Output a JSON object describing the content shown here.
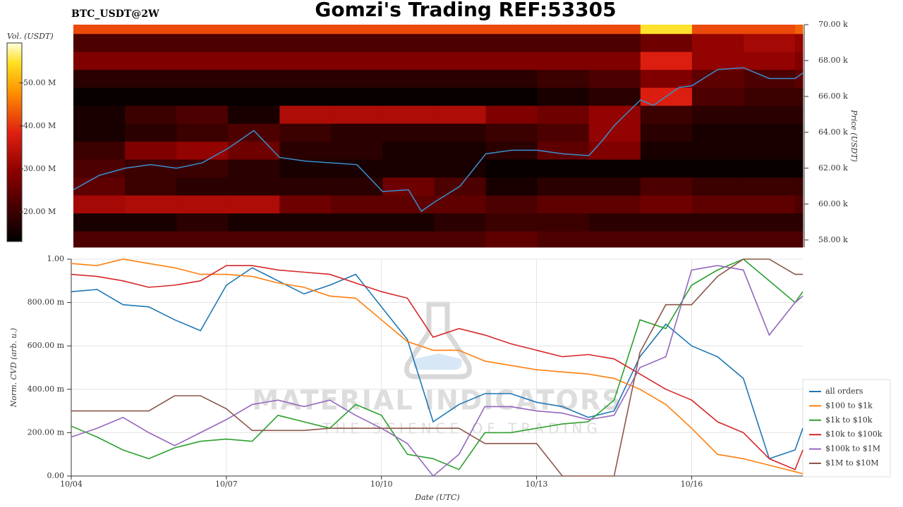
{
  "title": "Gomzi's Trading REF:53305",
  "watermark": {
    "title": "MATERIAL INDICATORS",
    "subtitle": "THE SCIENCE OF TRADING"
  },
  "chart_data": [
    {
      "type": "heatmap",
      "title": "BTC_USDT@2W",
      "ylabel": "Price (USDT)",
      "xlim": [
        0,
        14.15
      ],
      "ylim": [
        57.6,
        70
      ],
      "yticks": [
        {
          "value": 58,
          "label": "58.00 k"
        },
        {
          "value": 60,
          "label": "60.00 k"
        },
        {
          "value": 62,
          "label": "62.00 k"
        },
        {
          "value": 64,
          "label": "64.00 k"
        },
        {
          "value": 66,
          "label": "66.00 k"
        },
        {
          "value": 68,
          "label": "68.00 k"
        },
        {
          "value": 70,
          "label": "70.00 k"
        }
      ],
      "x_edges": [
        0,
        1,
        2,
        3,
        4,
        5,
        6,
        7,
        8,
        9,
        10,
        11,
        12,
        13,
        14,
        14.15
      ],
      "y_edges": [
        57.6,
        58.5,
        59.5,
        60.5,
        61.5,
        62.5,
        63.5,
        64.5,
        65.5,
        66.5,
        67.5,
        68.5,
        69.5,
        70
      ],
      "values": [
        [
          22,
          22,
          22,
          22,
          22,
          22,
          22,
          22,
          24,
          22,
          22,
          22,
          22,
          22,
          22
        ],
        [
          16,
          16,
          18,
          16,
          16,
          16,
          16,
          18,
          20,
          20,
          18,
          18,
          18,
          18,
          18
        ],
        [
          32,
          33,
          33,
          33,
          26,
          24,
          24,
          24,
          22,
          24,
          24,
          26,
          24,
          24,
          22
        ],
        [
          24,
          20,
          18,
          18,
          18,
          18,
          26,
          22,
          16,
          18,
          18,
          22,
          20,
          20,
          20
        ],
        [
          22,
          20,
          20,
          18,
          16,
          16,
          16,
          16,
          14,
          14,
          14,
          14,
          14,
          14,
          14
        ],
        [
          20,
          28,
          30,
          26,
          18,
          18,
          16,
          16,
          18,
          24,
          28,
          16,
          16,
          16,
          16
        ],
        [
          16,
          18,
          20,
          22,
          20,
          18,
          18,
          18,
          20,
          22,
          30,
          18,
          16,
          16,
          16
        ],
        [
          16,
          20,
          22,
          16,
          33,
          33,
          33,
          33,
          28,
          26,
          30,
          20,
          18,
          18,
          18
        ],
        [
          14,
          14,
          14,
          14,
          14,
          14,
          14,
          14,
          14,
          16,
          18,
          38,
          22,
          20,
          20
        ],
        [
          18,
          18,
          18,
          18,
          18,
          18,
          18,
          18,
          18,
          20,
          22,
          28,
          24,
          22,
          24
        ],
        [
          28,
          28,
          28,
          28,
          28,
          28,
          28,
          28,
          28,
          28,
          28,
          38,
          30,
          30,
          28
        ],
        [
          22,
          22,
          22,
          22,
          22,
          22,
          22,
          22,
          22,
          22,
          22,
          26,
          30,
          32,
          30
        ],
        [
          42,
          42,
          42,
          42,
          42,
          42,
          42,
          42,
          42,
          42,
          42,
          55,
          42,
          42,
          44
        ]
      ],
      "colorbar": {
        "label": "Vol. (USDT)",
        "lim": [
          13.1,
          59.3
        ],
        "ticks": [
          {
            "value": 20,
            "label": "20.00 M"
          },
          {
            "value": 30,
            "label": "30.00 M"
          },
          {
            "value": 40,
            "label": "40.00 M"
          },
          {
            "value": 50,
            "label": "50.00 M"
          }
        ]
      },
      "line": {
        "color": "#3a8fd0",
        "x": [
          0,
          0.5,
          1,
          1.5,
          2,
          2.5,
          3,
          3.25,
          3.5,
          4,
          4.5,
          5,
          5.5,
          6,
          6.5,
          6.75,
          7,
          7.5,
          8,
          8.5,
          9,
          9.5,
          10,
          10.25,
          10.5,
          11,
          11.25,
          11.75,
          12,
          12.5,
          13,
          13.5,
          14,
          14.15
        ],
        "values": [
          60.8,
          61.6,
          62.0,
          62.2,
          62.0,
          62.3,
          63.1,
          63.6,
          64.1,
          62.6,
          62.4,
          62.3,
          62.2,
          60.7,
          60.8,
          59.6,
          60.1,
          61.0,
          62.8,
          63.0,
          63.0,
          62.8,
          62.7,
          63.5,
          64.4,
          65.8,
          65.5,
          66.5,
          66.6,
          67.5,
          67.6,
          67.0,
          67.0,
          67.3
        ]
      }
    },
    {
      "type": "line",
      "xlabel": "Date (UTC)",
      "ylabel": "Norm. CVD (arb. u.)",
      "grid": true,
      "legend": "right",
      "xlim": [
        0,
        14.15
      ],
      "ylim": [
        0,
        1
      ],
      "xticks": [
        {
          "value": 0,
          "label": "10/04"
        },
        {
          "value": 3,
          "label": "10/07"
        },
        {
          "value": 6,
          "label": "10/10"
        },
        {
          "value": 9,
          "label": "10/13"
        },
        {
          "value": 12,
          "label": "10/16"
        }
      ],
      "yticks": [
        {
          "value": 0,
          "label": "0.00"
        },
        {
          "value": 0.2,
          "label": "200.00 m"
        },
        {
          "value": 0.4,
          "label": "400.00 m"
        },
        {
          "value": 0.6,
          "label": "600.00 m"
        },
        {
          "value": 0.8,
          "label": "800.00 m"
        },
        {
          "value": 1,
          "label": "1.00"
        }
      ],
      "x": [
        0,
        0.5,
        1,
        1.5,
        2,
        2.5,
        3,
        3.5,
        4,
        4.5,
        5,
        5.5,
        6,
        6.5,
        7,
        7.5,
        8,
        8.5,
        9,
        9.5,
        10,
        10.5,
        11,
        11.5,
        12,
        12.5,
        13,
        13.5,
        14,
        14.15
      ],
      "series": [
        {
          "name": "all orders",
          "color": "#1f77b4",
          "values": [
            0.85,
            0.86,
            0.79,
            0.78,
            0.72,
            0.67,
            0.88,
            0.96,
            0.9,
            0.84,
            0.88,
            0.93,
            0.78,
            0.63,
            0.25,
            0.33,
            0.38,
            0.38,
            0.34,
            0.32,
            0.27,
            0.3,
            0.55,
            0.7,
            0.6,
            0.55,
            0.45,
            0.08,
            0.12,
            0.22
          ]
        },
        {
          "name": "$100 to $1k",
          "color": "#ff7f0e",
          "values": [
            0.98,
            0.97,
            1.0,
            0.98,
            0.96,
            0.93,
            0.93,
            0.92,
            0.89,
            0.87,
            0.83,
            0.82,
            0.72,
            0.62,
            0.58,
            0.58,
            0.53,
            0.51,
            0.49,
            0.48,
            0.47,
            0.45,
            0.4,
            0.33,
            0.22,
            0.1,
            0.08,
            0.05,
            0.02,
            0.01
          ]
        },
        {
          "name": "$1k to $10k",
          "color": "#2ca02c",
          "values": [
            0.23,
            0.18,
            0.12,
            0.08,
            0.13,
            0.16,
            0.17,
            0.16,
            0.28,
            0.25,
            0.22,
            0.33,
            0.28,
            0.1,
            0.08,
            0.03,
            0.2,
            0.2,
            0.22,
            0.24,
            0.25,
            0.35,
            0.72,
            0.68,
            0.88,
            0.95,
            1.0,
            0.9,
            0.8,
            0.85
          ]
        },
        {
          "name": "$10k to $100k",
          "color": "#d62728",
          "values": [
            0.93,
            0.92,
            0.9,
            0.87,
            0.88,
            0.9,
            0.97,
            0.97,
            0.95,
            0.94,
            0.93,
            0.89,
            0.85,
            0.82,
            0.64,
            0.68,
            0.65,
            0.61,
            0.58,
            0.55,
            0.56,
            0.54,
            0.47,
            0.4,
            0.35,
            0.25,
            0.2,
            0.08,
            0.03,
            0.12
          ]
        },
        {
          "name": "$100k to $1M",
          "color": "#9467bd",
          "values": [
            0.18,
            0.22,
            0.27,
            0.2,
            0.14,
            0.2,
            0.26,
            0.33,
            0.35,
            0.32,
            0.35,
            0.28,
            0.22,
            0.15,
            0.0,
            0.1,
            0.32,
            0.32,
            0.3,
            0.29,
            0.26,
            0.28,
            0.5,
            0.55,
            0.95,
            0.97,
            0.95,
            0.65,
            0.8,
            0.83
          ]
        },
        {
          "name": "$1M to $10M",
          "color": "#8c564b",
          "values": [
            0.3,
            0.3,
            0.3,
            0.3,
            0.37,
            0.37,
            0.31,
            0.21,
            0.21,
            0.21,
            0.22,
            0.22,
            0.22,
            0.22,
            0.22,
            0.22,
            0.15,
            0.15,
            0.15,
            0.0,
            0.0,
            0.0,
            0.57,
            0.79,
            0.79,
            0.92,
            1.0,
            1.0,
            0.93,
            0.93
          ]
        }
      ]
    }
  ]
}
